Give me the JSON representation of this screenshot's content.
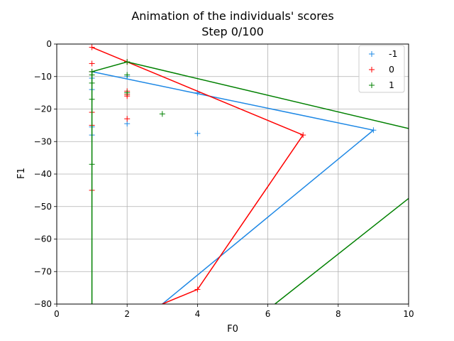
{
  "chart_data": {
    "type": "scatter",
    "title": "Animation of the individuals' scores",
    "subtitle": "Step 0/100",
    "xlabel": "F0",
    "ylabel": "F1",
    "xlim": [
      0,
      10
    ],
    "ylim": [
      -80,
      0
    ],
    "xticks": [
      0,
      2,
      4,
      6,
      8,
      10
    ],
    "xtick_labels": [
      "0",
      "2",
      "4",
      "6",
      "8",
      "10"
    ],
    "yticks": [
      0,
      -10,
      -20,
      -30,
      -40,
      -50,
      -60,
      -70,
      -80
    ],
    "ytick_labels": [
      "0",
      "−10",
      "−20",
      "−30",
      "−40",
      "−50",
      "−60",
      "−70",
      "−80"
    ],
    "grid": true,
    "legend_position": "top-right",
    "series": [
      {
        "name": "-1",
        "color": "#1e88e5",
        "points": [
          [
            1,
            -8.5
          ],
          [
            1,
            -10.5
          ],
          [
            1,
            -14
          ],
          [
            1,
            -25.5
          ],
          [
            1,
            -28
          ],
          [
            2,
            -10
          ],
          [
            2,
            -24.5
          ],
          [
            4,
            -15
          ],
          [
            4,
            -27.5
          ],
          [
            9,
            -26.5
          ]
        ],
        "front": [
          [
            1,
            -8.5
          ],
          [
            9,
            -26.5
          ],
          [
            3,
            -80
          ]
        ]
      },
      {
        "name": "0",
        "color": "#ff0000",
        "points": [
          [
            1,
            -1
          ],
          [
            1,
            -6
          ],
          [
            1,
            -8.5
          ],
          [
            1,
            -21
          ],
          [
            1,
            -25
          ],
          [
            1,
            -45
          ],
          [
            2,
            -5.5
          ],
          [
            2,
            -14.5
          ],
          [
            2,
            -15.5
          ],
          [
            2,
            -16
          ],
          [
            2,
            -23
          ],
          [
            4,
            -75.5
          ],
          [
            7,
            -28
          ]
        ],
        "front": [
          [
            1,
            -1
          ],
          [
            7,
            -28
          ],
          [
            4,
            -75.5
          ],
          [
            3,
            -80
          ]
        ]
      },
      {
        "name": "1",
        "color": "#008000",
        "points": [
          [
            1,
            -8.5
          ],
          [
            1,
            -9.5
          ],
          [
            1,
            -12
          ],
          [
            1,
            -17
          ],
          [
            1,
            -37
          ],
          [
            2,
            -5.5
          ],
          [
            2,
            -9.5
          ],
          [
            2,
            -15
          ],
          [
            3,
            -21.5
          ]
        ],
        "front": [
          [
            1,
            -80
          ],
          [
            1,
            -8.5
          ],
          [
            2,
            -5.5
          ],
          [
            10,
            -26
          ]
        ],
        "front2": [
          [
            6.2,
            -80
          ],
          [
            10,
            -47.5
          ]
        ]
      }
    ]
  }
}
